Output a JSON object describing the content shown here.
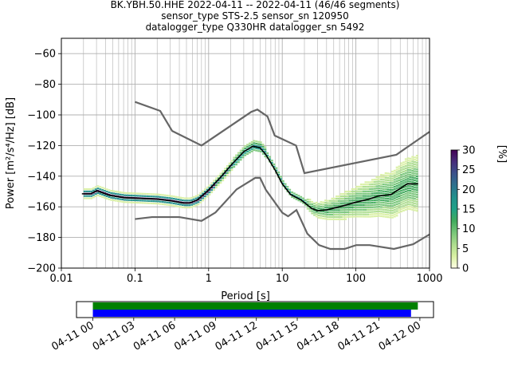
{
  "header": {
    "line1": "BK.YBH.50.HHE   2022-04-11 -- 2022-04-11  (46/46 segments)",
    "line2": "sensor_type STS-2.5 sensor_sn 120950",
    "line3": "datalogger_type Q330HR datalogger_sn 5492"
  },
  "chart_data": [
    {
      "type": "heatmap",
      "xlabel": "Period [s]",
      "ylabel": "Power [m²/s⁴/Hz] [dB]",
      "xscale": "log",
      "xlim": [
        0.01,
        1000
      ],
      "ylim": [
        -200,
        -50
      ],
      "xticks": [
        {
          "value": 0.01,
          "label": "0.01"
        },
        {
          "value": 0.1,
          "label": "0.1"
        },
        {
          "value": 1,
          "label": "1"
        },
        {
          "value": 10,
          "label": "10"
        },
        {
          "value": 100,
          "label": "100"
        },
        {
          "value": 1000,
          "label": "1000"
        }
      ],
      "yticks": [
        {
          "value": -60,
          "label": "−60"
        },
        {
          "value": -80,
          "label": "−80"
        },
        {
          "value": -100,
          "label": "−100"
        },
        {
          "value": -120,
          "label": "−120"
        },
        {
          "value": -140,
          "label": "−140"
        },
        {
          "value": -160,
          "label": "−160"
        },
        {
          "value": -180,
          "label": "−180"
        },
        {
          "value": -200,
          "label": "−200"
        }
      ],
      "grid": true,
      "colorbar": {
        "label": "[%]",
        "range": [
          0,
          30
        ],
        "ticks": [
          {
            "value": 0,
            "label": "0"
          },
          {
            "value": 5,
            "label": "5"
          },
          {
            "value": 10,
            "label": "10"
          },
          {
            "value": 15,
            "label": "15"
          },
          {
            "value": 20,
            "label": "20"
          },
          {
            "value": 25,
            "label": "25"
          },
          {
            "value": 30,
            "label": "30"
          }
        ],
        "colors": [
          "#ffffe5",
          "#d9f0a3",
          "#addd8e",
          "#78c679",
          "#41ab5d",
          "#1fa187",
          "#21908c",
          "#2c728e",
          "#3b528b",
          "#472d7b",
          "#440154"
        ]
      },
      "series": [
        {
          "role": "noise-model-high",
          "color": "#666666",
          "points": [
            [
              0.1,
              -91.5
            ],
            [
              0.22,
              -97.4
            ],
            [
              0.32,
              -110.5
            ],
            [
              0.8,
              -120
            ],
            [
              3.8,
              -98
            ],
            [
              4.6,
              -96.5
            ],
            [
              6.3,
              -101
            ],
            [
              7.9,
              -113.5
            ],
            [
              15.4,
              -120
            ],
            [
              20,
              -138
            ],
            [
              354.8,
              -126
            ],
            [
              1000,
              -111
            ]
          ]
        },
        {
          "role": "noise-model-low",
          "color": "#666666",
          "points": [
            [
              0.1,
              -168
            ],
            [
              0.17,
              -166.7
            ],
            [
              0.4,
              -166.7
            ],
            [
              0.8,
              -169.2
            ],
            [
              1.24,
              -163.7
            ],
            [
              2.4,
              -148.6
            ],
            [
              4.3,
              -141.1
            ],
            [
              5,
              -141.1
            ],
            [
              6,
              -149
            ],
            [
              10,
              -163.8
            ],
            [
              12,
              -166.2
            ],
            [
              15.6,
              -162.1
            ],
            [
              21.9,
              -177.5
            ],
            [
              31.6,
              -185
            ],
            [
              45,
              -187.5
            ],
            [
              70,
              -187.5
            ],
            [
              101,
              -185
            ],
            [
              154,
              -185
            ],
            [
              328,
              -187.5
            ],
            [
              600,
              -184.4
            ],
            [
              1000,
              -178
            ]
          ]
        },
        {
          "role": "mean",
          "color": "#000000",
          "points": [
            [
              0.019,
              -151.5
            ],
            [
              0.025,
              -151.5
            ],
            [
              0.03,
              -149.5
            ],
            [
              0.045,
              -152.5
            ],
            [
              0.07,
              -154
            ],
            [
              0.12,
              -154.5
            ],
            [
              0.2,
              -155
            ],
            [
              0.3,
              -156
            ],
            [
              0.45,
              -157.5
            ],
            [
              0.55,
              -157.5
            ],
            [
              0.7,
              -155.5
            ],
            [
              1,
              -149
            ],
            [
              1.5,
              -140
            ],
            [
              2,
              -133
            ],
            [
              3,
              -124
            ],
            [
              4,
              -120.5
            ],
            [
              5,
              -121.5
            ],
            [
              6,
              -126
            ],
            [
              8,
              -136
            ],
            [
              10,
              -145
            ],
            [
              13,
              -152
            ],
            [
              18,
              -155.5
            ],
            [
              25,
              -161
            ],
            [
              30,
              -162.5
            ],
            [
              40,
              -162
            ],
            [
              60,
              -160
            ],
            [
              100,
              -157
            ],
            [
              150,
              -155
            ],
            [
              200,
              -153
            ],
            [
              300,
              -152
            ],
            [
              400,
              -148
            ],
            [
              500,
              -145
            ],
            [
              700,
              -145
            ]
          ]
        }
      ]
    },
    {
      "type": "timeline",
      "xticks": [
        {
          "label": "04-11 00"
        },
        {
          "label": "04-11 03"
        },
        {
          "label": "04-11 06"
        },
        {
          "label": "04-11 09"
        },
        {
          "label": "04-11 12"
        },
        {
          "label": "04-11 15"
        },
        {
          "label": "04-11 18"
        },
        {
          "label": "04-11 21"
        },
        {
          "label": "04-12 00"
        }
      ],
      "xrange_hours": [
        -1.2,
        25.0
      ],
      "bars": [
        {
          "color": "#008000",
          "start_hour": 0,
          "end_hour": 23.85
        },
        {
          "color": "#0000ff",
          "start_hour": 0,
          "end_hour": 23.35
        }
      ]
    }
  ]
}
